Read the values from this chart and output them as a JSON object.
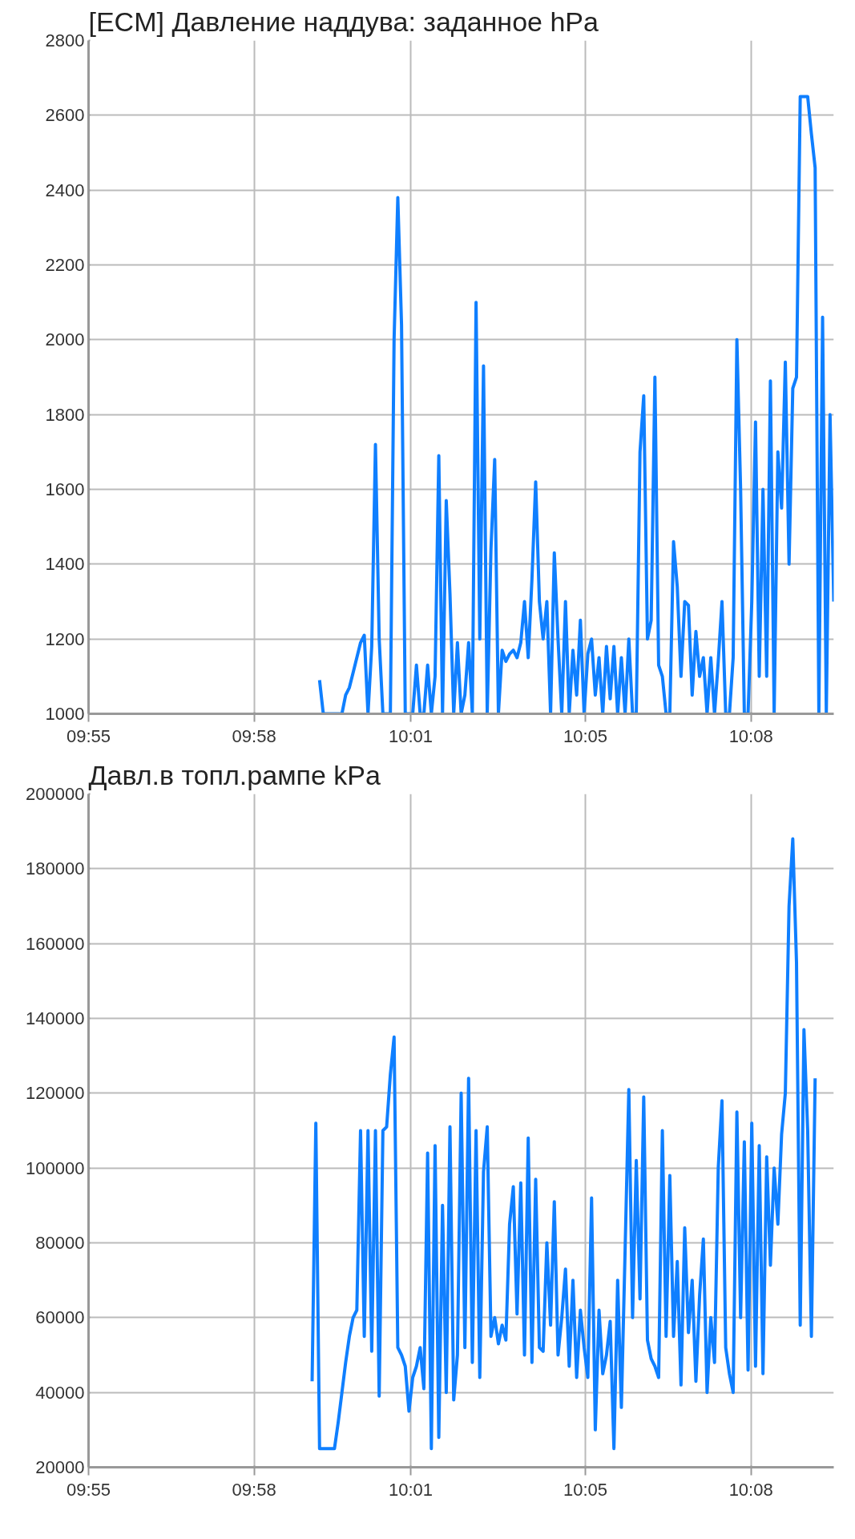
{
  "chart_data": [
    {
      "type": "line",
      "title": "[ECM] Давление наддува: заданное  hPa",
      "grid": true,
      "xlim": [
        9.91667,
        10.16667
      ],
      "xticks": [
        {
          "value": 9.91667,
          "label": "09:55"
        },
        {
          "value": 9.97222,
          "label": "09:58"
        },
        {
          "value": 10.02472,
          "label": "10:01"
        },
        {
          "value": 10.08333,
          "label": "10:05"
        },
        {
          "value": 10.13889,
          "label": "10:08"
        }
      ],
      "ylim": [
        1000,
        2800
      ],
      "yticks": [
        1000,
        1200,
        1400,
        1600,
        1800,
        2000,
        2200,
        2400,
        2600,
        2800
      ],
      "x": [
        9.99417,
        9.99542,
        9.99667,
        9.99792,
        9.99917,
        10.00042,
        10.00167,
        10.00292,
        10.00417,
        10.00542,
        10.00667,
        10.00792,
        10.00917,
        10.01042,
        10.01167,
        10.01292,
        10.01417,
        10.01542,
        10.01667,
        10.01792,
        10.01917,
        10.02042,
        10.02167,
        10.02292,
        10.02417,
        10.02542,
        10.02667,
        10.02792,
        10.02917,
        10.03042,
        10.03167,
        10.03292,
        10.03417,
        10.03542,
        10.03667,
        10.03792,
        10.03917,
        10.04042,
        10.04167,
        10.04292,
        10.04417,
        10.04542,
        10.04667,
        10.04792,
        10.04917,
        10.05042,
        10.05167,
        10.05292,
        10.05417,
        10.05542,
        10.05667,
        10.05792,
        10.05917,
        10.06042,
        10.06167,
        10.06292,
        10.06417,
        10.06542,
        10.06667,
        10.06792,
        10.06917,
        10.07042,
        10.07167,
        10.07292,
        10.07417,
        10.07542,
        10.07667,
        10.07792,
        10.07917,
        10.08042,
        10.08167,
        10.08292,
        10.08417,
        10.08542,
        10.08667,
        10.08792,
        10.08917,
        10.09042,
        10.09167,
        10.09292,
        10.09417,
        10.09542,
        10.09667,
        10.09792,
        10.09917,
        10.10042,
        10.10167,
        10.10292,
        10.10417,
        10.10542,
        10.10667,
        10.10792,
        10.10917,
        10.11042,
        10.11167,
        10.11292,
        10.11417,
        10.11542,
        10.11667,
        10.11792,
        10.11917,
        10.12042,
        10.12167,
        10.12292,
        10.12417,
        10.12542,
        10.12667,
        10.12792,
        10.12917,
        10.13042,
        10.13167,
        10.13292,
        10.13417,
        10.13542,
        10.13667,
        10.13792,
        10.13917,
        10.14042,
        10.14167,
        10.14292,
        10.14417,
        10.14542,
        10.14667,
        10.14792,
        10.14917,
        10.15042,
        10.15167,
        10.15292,
        10.15417,
        10.15542,
        10.15667,
        10.15792,
        10.15917,
        10.16042,
        10.16167,
        10.16292,
        10.16417,
        10.16542,
        10.16667
      ],
      "series": [
        {
          "color": "#0f7fff",
          "values": [
            1090,
            1000,
            1000,
            1000,
            1000,
            1000,
            1000,
            1050,
            1070,
            1110,
            1150,
            1190,
            1210,
            1000,
            1180,
            1720,
            1200,
            1000,
            1000,
            1000,
            2000,
            2380,
            2040,
            1000,
            1000,
            1000,
            1130,
            1000,
            1000,
            1130,
            1000,
            1100,
            1690,
            1000,
            1570,
            1320,
            1000,
            1190,
            1000,
            1050,
            1190,
            1000,
            2100,
            1200,
            1930,
            1000,
            1440,
            1680,
            1000,
            1170,
            1140,
            1160,
            1170,
            1150,
            1190,
            1300,
            1150,
            1360,
            1620,
            1300,
            1200,
            1300,
            1000,
            1430,
            1200,
            1000,
            1300,
            1000,
            1170,
            1050,
            1250,
            1000,
            1160,
            1200,
            1050,
            1150,
            1000,
            1180,
            1040,
            1180,
            1000,
            1150,
            1000,
            1200,
            1000,
            1000,
            1700,
            1850,
            1200,
            1250,
            1900,
            1130,
            1100,
            1000,
            1000,
            1460,
            1340,
            1100,
            1300,
            1290,
            1050,
            1220,
            1100,
            1150,
            1000,
            1150,
            1000,
            1140,
            1300,
            1000,
            1000,
            1150,
            2000,
            1600,
            1000,
            1000,
            1300,
            1780,
            1100,
            1600,
            1100,
            1890,
            1000,
            1700,
            1550,
            1940,
            1400,
            1870,
            1900,
            2650,
            2650,
            2650,
            2550,
            2460,
            1000,
            2060,
            1000,
            1800,
            1300
          ]
        }
      ]
    },
    {
      "type": "line",
      "title": "Давл.в топл.рампе  kPa",
      "grid": true,
      "xlim": [
        9.91667,
        10.16667
      ],
      "xticks": [
        {
          "value": 9.91667,
          "label": "09:55"
        },
        {
          "value": 9.97222,
          "label": "09:58"
        },
        {
          "value": 10.02472,
          "label": "10:01"
        },
        {
          "value": 10.08333,
          "label": "10:05"
        },
        {
          "value": 10.13889,
          "label": "10:08"
        }
      ],
      "ylim": [
        20000,
        200000
      ],
      "yticks": [
        20000,
        40000,
        60000,
        80000,
        100000,
        120000,
        140000,
        160000,
        180000,
        200000
      ],
      "x": [
        9.99167,
        9.99292,
        9.99417,
        9.99542,
        9.99667,
        9.99792,
        9.99917,
        10.00042,
        10.00167,
        10.00292,
        10.00417,
        10.00542,
        10.00667,
        10.00792,
        10.00917,
        10.01042,
        10.01167,
        10.01292,
        10.01417,
        10.01542,
        10.01667,
        10.01792,
        10.01917,
        10.02042,
        10.02167,
        10.02292,
        10.02417,
        10.02542,
        10.02667,
        10.02792,
        10.02917,
        10.03042,
        10.03167,
        10.03292,
        10.03417,
        10.03542,
        10.03667,
        10.03792,
        10.03917,
        10.04042,
        10.04167,
        10.04292,
        10.04417,
        10.04542,
        10.04667,
        10.04792,
        10.04917,
        10.05042,
        10.05167,
        10.05292,
        10.05417,
        10.05542,
        10.05667,
        10.05792,
        10.05917,
        10.06042,
        10.06167,
        10.06292,
        10.06417,
        10.06542,
        10.06667,
        10.06792,
        10.06917,
        10.07042,
        10.07167,
        10.07292,
        10.07417,
        10.07542,
        10.07667,
        10.07792,
        10.07917,
        10.08042,
        10.08167,
        10.08292,
        10.08417,
        10.08542,
        10.08667,
        10.08792,
        10.08917,
        10.09042,
        10.09167,
        10.09292,
        10.09417,
        10.09542,
        10.09667,
        10.09792,
        10.09917,
        10.10042,
        10.10167,
        10.10292,
        10.10417,
        10.10542,
        10.10667,
        10.10792,
        10.10917,
        10.11042,
        10.11167,
        10.11292,
        10.11417,
        10.11542,
        10.11667,
        10.11792,
        10.11917,
        10.12042,
        10.12167,
        10.12292,
        10.12417,
        10.12542,
        10.12667,
        10.12792,
        10.12917,
        10.13042,
        10.13167,
        10.13292,
        10.13417,
        10.13542,
        10.13667,
        10.13792,
        10.13917,
        10.14042,
        10.14167,
        10.14292,
        10.14417,
        10.14542,
        10.14667,
        10.14792,
        10.14917,
        10.15042,
        10.15167,
        10.15292,
        10.15417,
        10.15542,
        10.15667,
        10.15792,
        10.15917,
        10.16042
      ],
      "series": [
        {
          "color": "#0f7fff",
          "values": [
            43000,
            112000,
            25000,
            25000,
            25000,
            25000,
            25000,
            32000,
            40000,
            48000,
            55000,
            60000,
            62000,
            110000,
            55000,
            110000,
            51000,
            110000,
            39000,
            110000,
            111000,
            125000,
            135000,
            52000,
            50000,
            47000,
            35000,
            44000,
            47000,
            52000,
            41000,
            104000,
            25000,
            106000,
            28000,
            90000,
            40000,
            111000,
            38000,
            50000,
            120000,
            52000,
            124000,
            48000,
            110000,
            44000,
            99000,
            111000,
            55000,
            60000,
            53000,
            58000,
            54000,
            85000,
            95000,
            61000,
            96000,
            50000,
            108000,
            48000,
            97000,
            52000,
            51000,
            80000,
            58000,
            91000,
            50000,
            60000,
            73000,
            47000,
            70000,
            44000,
            62000,
            52000,
            44000,
            92000,
            30000,
            62000,
            45000,
            50000,
            59000,
            25000,
            70000,
            36000,
            78000,
            121000,
            60000,
            102000,
            65000,
            119000,
            54000,
            49000,
            47000,
            44000,
            110000,
            55000,
            98000,
            55000,
            75000,
            42000,
            84000,
            56000,
            70000,
            43000,
            66000,
            81000,
            40000,
            60000,
            48000,
            100000,
            118000,
            52000,
            45000,
            40000,
            115000,
            60000,
            107000,
            46000,
            112000,
            47000,
            106000,
            45000,
            103000,
            74000,
            100000,
            85000,
            109000,
            120000,
            170000,
            188000,
            155000,
            58000,
            137000,
            110000,
            55000,
            124000
          ]
        }
      ]
    }
  ]
}
